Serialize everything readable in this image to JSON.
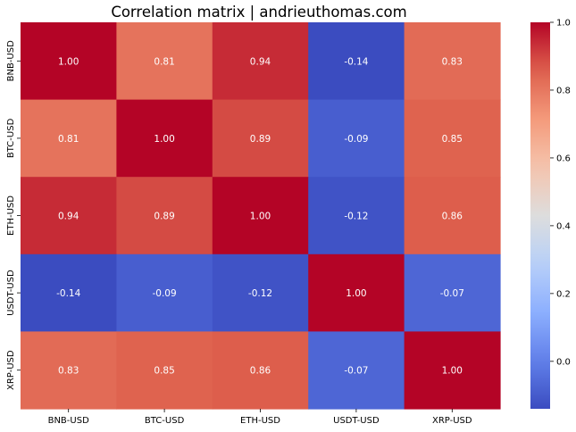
{
  "chart_data": {
    "type": "heatmap",
    "title": "Correlation matrix | andrieuthomas.com",
    "x_labels": [
      "BNB-USD",
      "BTC-USD",
      "ETH-USD",
      "USDT-USD",
      "XRP-USD"
    ],
    "y_labels": [
      "BNB-USD",
      "BTC-USD",
      "ETH-USD",
      "USDT-USD",
      "XRP-USD"
    ],
    "values": [
      [
        1.0,
        0.81,
        0.94,
        -0.14,
        0.83
      ],
      [
        0.81,
        1.0,
        0.89,
        -0.09,
        0.85
      ],
      [
        0.94,
        0.89,
        1.0,
        -0.12,
        0.86
      ],
      [
        -0.14,
        -0.09,
        -0.12,
        1.0,
        -0.07
      ],
      [
        0.83,
        0.85,
        0.86,
        -0.07,
        1.0
      ]
    ],
    "cell_labels": [
      [
        "1.00",
        "0.81",
        "0.94",
        "-0.14",
        "0.83"
      ],
      [
        "0.81",
        "1.00",
        "0.89",
        "-0.09",
        "0.85"
      ],
      [
        "0.94",
        "0.89",
        "1.00",
        "-0.12",
        "0.86"
      ],
      [
        "-0.14",
        "-0.09",
        "-0.12",
        "1.00",
        "-0.07"
      ],
      [
        "0.83",
        "0.85",
        "0.86",
        "-0.07",
        "1.00"
      ]
    ],
    "colormap": "coolwarm",
    "colorbar": {
      "min": -0.14,
      "max": 1.0,
      "ticks": [
        0.0,
        0.2,
        0.4,
        0.6,
        0.8,
        1.0
      ],
      "tick_labels": [
        "0.0",
        "0.2",
        "0.4",
        "0.6",
        "0.8",
        "1.0"
      ]
    },
    "legend": "colorbar-right",
    "grid": false
  }
}
